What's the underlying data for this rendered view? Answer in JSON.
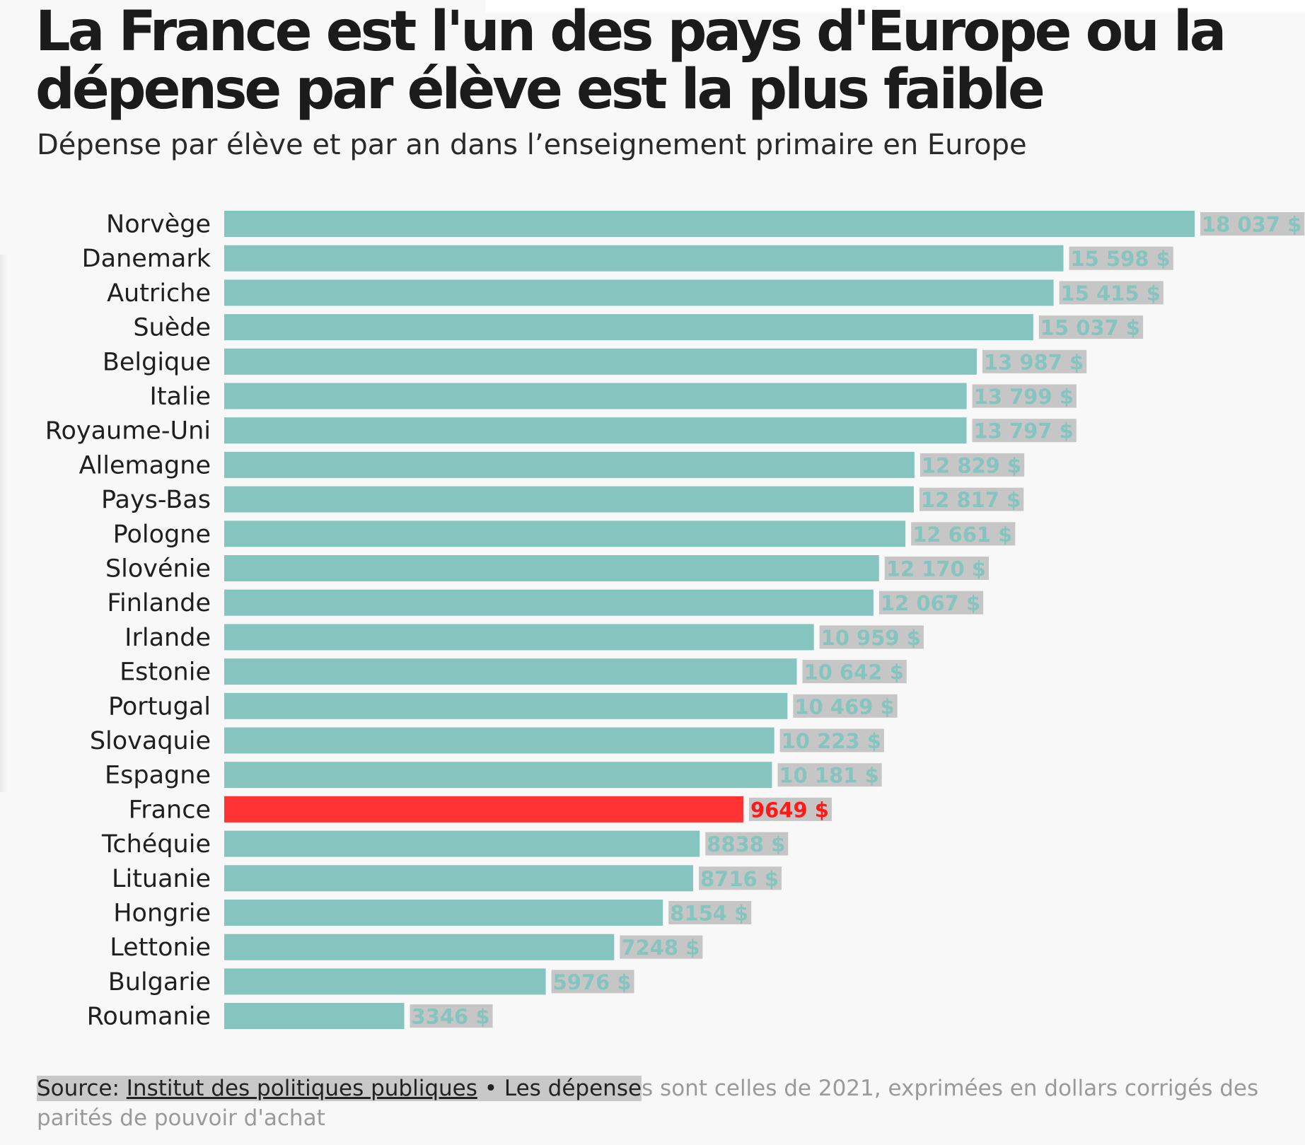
{
  "title": "La France est l'un des pays d'Europe ou la dépense par élève est la plus faible",
  "subtitle": "Dépense par élève et par an dans l’enseignement primaire en Europe",
  "footer": {
    "source_prefix": "Source: ",
    "source_link": "Institut des politiques publiques",
    "note_dark": " • Les dépense",
    "note_light": "s sont celles de 2021, exprimées en dollars corrigés des parités de pouvoir d'achat"
  },
  "colors": {
    "bar": "#86c5bf",
    "highlight": "#ff3333",
    "value_label": "#86c5bf",
    "value_label_bg": "#c6c6c6",
    "highlight_label": "#ff1a1a"
  },
  "chart_data": {
    "type": "bar",
    "orientation": "horizontal",
    "unit": "$",
    "categories": [
      "Norvège",
      "Danemark",
      "Autriche",
      "Suède",
      "Belgique",
      "Italie",
      "Royaume-Uni",
      "Allemagne",
      "Pays-Bas",
      "Pologne",
      "Slovénie",
      "Finlande",
      "Irlande",
      "Estonie",
      "Portugal",
      "Slovaquie",
      "Espagne",
      "France",
      "Tchéquie",
      "Lituanie",
      "Hongrie",
      "Lettonie",
      "Bulgarie",
      "Roumanie"
    ],
    "values": [
      18037,
      15598,
      15415,
      15037,
      13987,
      13799,
      13797,
      12829,
      12817,
      12661,
      12170,
      12067,
      10959,
      10642,
      10469,
      10223,
      10181,
      9649,
      8838,
      8716,
      8154,
      7248,
      5976,
      3346
    ],
    "value_labels": [
      "18 037 $",
      "15 598 $",
      "15 415 $",
      "15 037 $",
      "13 987 $",
      "13 799 $",
      "13 797 $",
      "12 829 $",
      "12 817 $",
      "12 661 $",
      "12 170 $",
      "12 067 $",
      "10 959 $",
      "10 642 $",
      "10 469 $",
      "10 223 $",
      "10 181 $",
      "9649 $",
      "8838 $",
      "8716 $",
      "8154 $",
      "7248 $",
      "5976 $",
      "3346 $"
    ],
    "highlight": "France",
    "xlim": [
      0,
      18037
    ],
    "grid": false,
    "legend": "none"
  }
}
